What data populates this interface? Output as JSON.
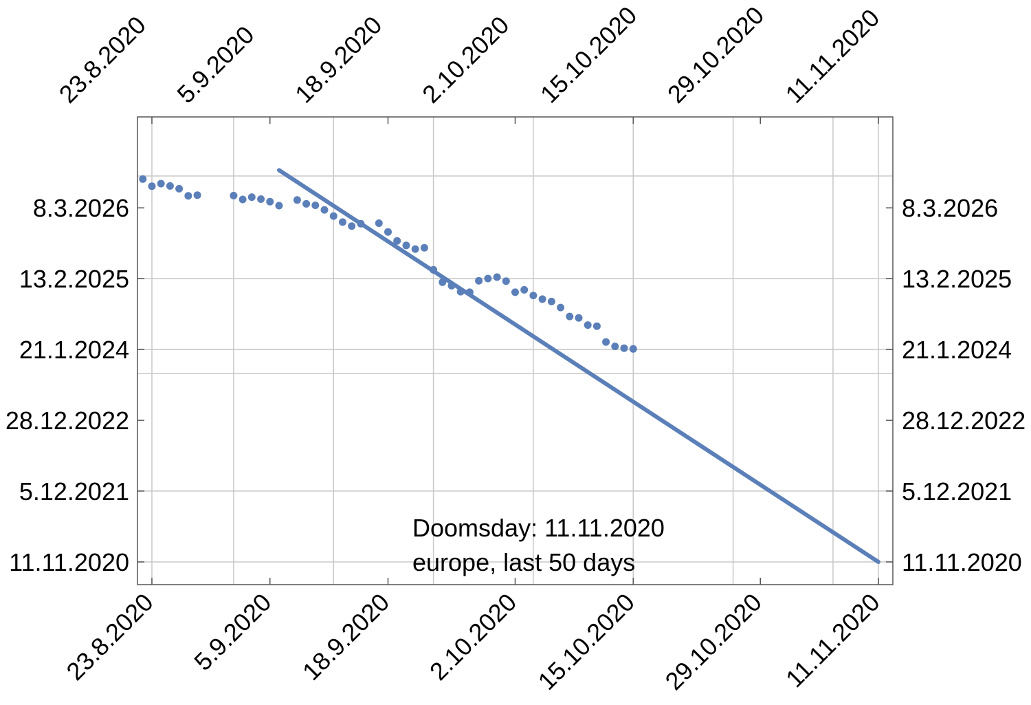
{
  "chart_data": {
    "type": "scatter",
    "title": "",
    "xlabel": "",
    "ylabel": "",
    "x_axis": "date",
    "y_axis": "date",
    "xlim": [
      "2020-08-21",
      "2020-11-12"
    ],
    "ylim": [
      "2020-09-24",
      "2026-10-01"
    ],
    "x_ticks": [
      "2020-08-23",
      "2020-09-05",
      "2020-09-18",
      "2020-10-02",
      "2020-10-15",
      "2020-10-29",
      "2020-11-11"
    ],
    "x_tick_labels": [
      "23.8.2020",
      "5.9.2020",
      "18.9.2020",
      "2.10.2020",
      "15.10.2020",
      "29.10.2020",
      "11.11.2020"
    ],
    "y_ticks": [
      "2020-11-11",
      "2021-12-05",
      "2022-12-28",
      "2024-01-21",
      "2025-02-13",
      "2026-03-08"
    ],
    "y_tick_labels": [
      "11.11.2020",
      "5.12.2021",
      "28.12.2022",
      "21.1.2024",
      "13.2.2025",
      "8.3.2026"
    ],
    "x_grid": [
      "2020-08-23",
      "2020-09-01",
      "2020-09-12",
      "2020-09-23",
      "2020-10-04",
      "2020-10-15",
      "2020-10-26",
      "2020-11-06",
      "2020-11-11"
    ],
    "y_grid": [
      "2020-11-11",
      "2021-12-05",
      "2023-09-10",
      "2024-01-21",
      "2025-02-13",
      "2026-08-30"
    ],
    "grid": true,
    "series": [
      {
        "kind": "points",
        "color": "#5B7FB8",
        "x": [
          "2020-08-22",
          "2020-08-23",
          "2020-08-24",
          "2020-08-25",
          "2020-08-26",
          "2020-08-27",
          "2020-08-28",
          "2020-09-01",
          "2020-09-02",
          "2020-09-03",
          "2020-09-04",
          "2020-09-05",
          "2020-09-06",
          "2020-09-08",
          "2020-09-09",
          "2020-09-10",
          "2020-09-11",
          "2020-09-12",
          "2020-09-13",
          "2020-09-14",
          "2020-09-15",
          "2020-09-17",
          "2020-09-18",
          "2020-09-19",
          "2020-09-20",
          "2020-09-21",
          "2020-09-22",
          "2020-09-23",
          "2020-09-24",
          "2020-09-25",
          "2020-09-26",
          "2020-09-27",
          "2020-09-28",
          "2020-09-29",
          "2020-09-30",
          "2020-10-01",
          "2020-10-02",
          "2020-10-03",
          "2020-10-04",
          "2020-10-05",
          "2020-10-06",
          "2020-10-07",
          "2020-10-08",
          "2020-10-09",
          "2020-10-10",
          "2020-10-11",
          "2020-10-12",
          "2020-10-13",
          "2020-10-14",
          "2020-10-15"
        ],
        "y": [
          "2026-08-13",
          "2026-07-05",
          "2026-07-19",
          "2026-07-06",
          "2026-06-21",
          "2026-05-13",
          "2026-05-17",
          "2026-05-14",
          "2026-04-23",
          "2026-05-06",
          "2026-04-25",
          "2026-04-11",
          "2026-03-20",
          "2026-04-20",
          "2026-03-30",
          "2026-03-22",
          "2026-02-25",
          "2026-01-22",
          "2025-12-20",
          "2025-11-28",
          "2025-12-11",
          "2025-12-14",
          "2025-10-27",
          "2025-09-08",
          "2025-08-14",
          "2025-07-25",
          "2025-08-01",
          "2025-04-02",
          "2025-01-24",
          "2025-01-05",
          "2024-12-03",
          "2024-11-30",
          "2025-02-01",
          "2025-02-13",
          "2025-02-21",
          "2025-01-30",
          "2024-11-30",
          "2024-12-13",
          "2024-11-12",
          "2024-10-23",
          "2024-10-10",
          "2024-09-07",
          "2024-07-20",
          "2024-07-12",
          "2024-06-03",
          "2024-05-28",
          "2024-03-02",
          "2024-02-07",
          "2024-01-28",
          "2024-01-24"
        ]
      },
      {
        "kind": "line",
        "color": "#5B7FB8",
        "x": [
          "2020-09-06",
          "2020-11-11"
        ],
        "y": [
          "2026-10-01",
          "2020-11-11"
        ]
      }
    ],
    "annotations": [
      "Doomsday: 11.11.2020",
      "europe, last 50 days"
    ],
    "colors": {
      "series": "#5B7FB8",
      "grid": "#C8C8C8",
      "frame": "#555555",
      "text": "#000000"
    }
  }
}
